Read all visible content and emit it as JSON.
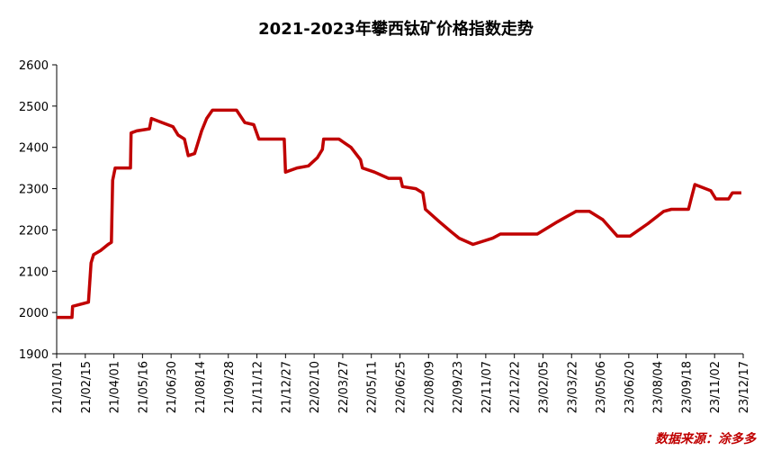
{
  "chart_data": {
    "type": "line",
    "title": "2021-2023年攀西钛矿价格指数走势",
    "source": "数据来源：涂多多",
    "x": [
      "21/01/01",
      "21/01/25",
      "21/01/26",
      "21/02/20",
      "21/02/24",
      "21/02/28",
      "21/03/11",
      "21/03/23",
      "21/03/28",
      "21/03/30",
      "21/04/03",
      "21/04/27",
      "21/04/28",
      "21/05/07",
      "21/05/27",
      "21/05/30",
      "21/06/16",
      "21/07/03",
      "21/07/11",
      "21/07/21",
      "21/07/27",
      "21/08/06",
      "21/08/17",
      "21/08/25",
      "21/09/03",
      "21/10/11",
      "21/10/24",
      "21/11/07",
      "21/11/15",
      "21/12/25",
      "21/12/27",
      "22/01/14",
      "22/02/01",
      "22/02/15",
      "22/02/23",
      "22/02/25",
      "22/03/21",
      "22/04/09",
      "22/04/24",
      "22/04/27",
      "22/05/16",
      "22/06/07",
      "22/06/26",
      "22/06/29",
      "22/07/20",
      "22/07/31",
      "22/08/04",
      "22/08/26",
      "22/09/14",
      "22/09/26",
      "22/10/18",
      "22/11/18",
      "22/11/30",
      "23/01/27",
      "23/02/28",
      "23/03/29",
      "23/04/19",
      "23/05/10",
      "23/06/02",
      "23/06/22",
      "23/07/20",
      "23/08/14",
      "23/08/26",
      "23/09/22",
      "23/09/26",
      "23/10/02",
      "23/10/27",
      "23/11/04",
      "23/11/24",
      "23/11/30",
      "23/12/14"
    ],
    "series": [
      {
        "color": "#c00000",
        "values": [
          1988,
          1988,
          2015,
          2025,
          2120,
          2140,
          2150,
          2165,
          2170,
          2320,
          2350,
          2350,
          2435,
          2440,
          2445,
          2470,
          2460,
          2450,
          2430,
          2420,
          2380,
          2385,
          2440,
          2470,
          2490,
          2490,
          2460,
          2455,
          2420,
          2420,
          2340,
          2350,
          2355,
          2375,
          2395,
          2420,
          2420,
          2400,
          2370,
          2350,
          2340,
          2325,
          2325,
          2305,
          2300,
          2290,
          2250,
          2220,
          2195,
          2180,
          2165,
          2180,
          2190,
          2190,
          2220,
          2245,
          2245,
          2225,
          2185,
          2185,
          2215,
          2245,
          2250,
          2250,
          2275,
          2310,
          2295,
          2275,
          2275,
          2290,
          2290
        ]
      }
    ],
    "xlim": [
      "21/01/01",
      "23/12/17"
    ],
    "xticks": [
      "21/01/01",
      "21/02/15",
      "21/04/01",
      "21/05/16",
      "21/06/30",
      "21/08/14",
      "21/09/28",
      "21/11/12",
      "21/12/27",
      "22/02/10",
      "22/03/27",
      "22/05/11",
      "22/06/25",
      "22/08/09",
      "22/09/23",
      "22/11/07",
      "22/12/22",
      "23/02/05",
      "23/03/22",
      "23/05/06",
      "23/06/20",
      "23/08/04",
      "23/09/18",
      "23/11/02",
      "23/12/17"
    ],
    "ylim": [
      1900,
      2600
    ],
    "yticks": [
      1900,
      2000,
      2100,
      2200,
      2300,
      2400,
      2500,
      2600
    ]
  }
}
